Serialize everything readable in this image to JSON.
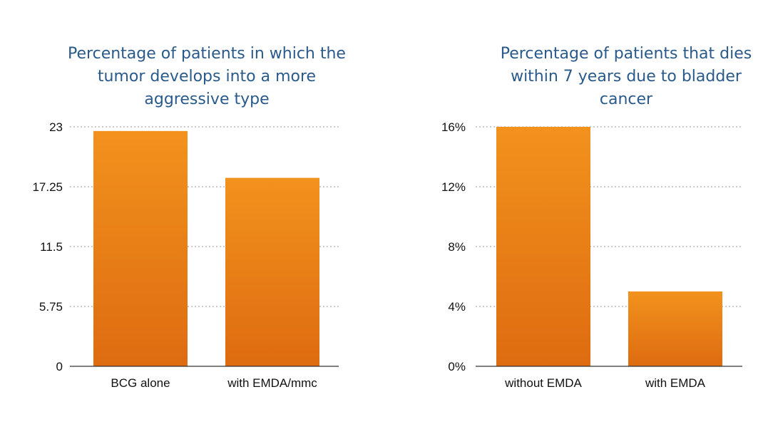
{
  "chart_data": [
    {
      "type": "bar",
      "title": "Percentage of patients in which the tumor develops into a more aggressive type",
      "categories": [
        "BCG alone",
        "with EMDA/mmc"
      ],
      "values": [
        22.6,
        18.1
      ],
      "ylim": [
        0,
        23
      ],
      "yticks": [
        0,
        5.75,
        11.5,
        17.25,
        23
      ],
      "ytick_labels": [
        "0",
        "5.75",
        "11.5",
        "17.25",
        "23"
      ],
      "xlabel": "",
      "ylabel": "",
      "grid": true,
      "colors": {
        "bar_top": "#f2921d",
        "bar_bottom": "#de6b10",
        "grid": "#999999",
        "axis": "#333333"
      }
    },
    {
      "type": "bar",
      "title": "Percentage of patients that dies within 7 years due to bladder cancer",
      "categories": [
        "without EMDA",
        "with EMDA"
      ],
      "values": [
        16,
        5
      ],
      "ylim": [
        0,
        16
      ],
      "yticks": [
        0,
        4,
        8,
        12,
        16
      ],
      "ytick_labels": [
        "0%",
        "4%",
        "8%",
        "12%",
        "16%"
      ],
      "xlabel": "",
      "ylabel": "",
      "grid": true,
      "colors": {
        "bar_top": "#f2921d",
        "bar_bottom": "#de6b10",
        "grid": "#999999",
        "axis": "#333333"
      }
    }
  ]
}
